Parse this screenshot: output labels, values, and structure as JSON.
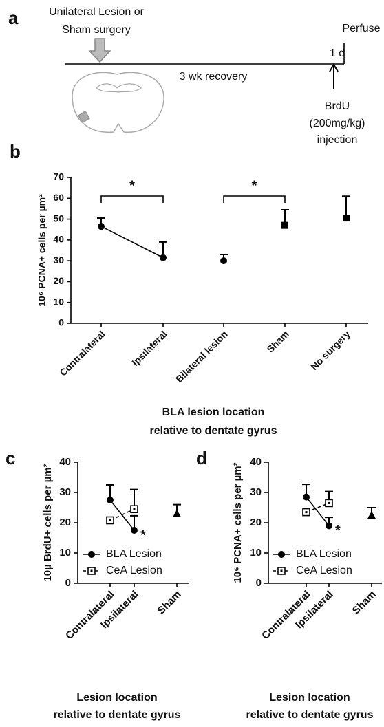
{
  "timeline": {
    "panel": "a",
    "start": [
      "Unilateral Lesion or",
      "Sham surgery"
    ],
    "recovery": "3 wk recovery",
    "interval": "1 d",
    "end": "Perfuse",
    "injection": [
      "BrdU",
      "(200mg/kg)",
      "injection"
    ]
  },
  "chart_data": [
    {
      "type": "errorbar",
      "panel": "b",
      "ylabel": "10⁶ PCNA+ cells per µm²",
      "xlabel": [
        "BLA lesion location",
        "relative to dentate gyrus"
      ],
      "categories": [
        "Contralateral",
        "Ipsilateral",
        "Bilateral lesion",
        "Sham",
        "No surgery"
      ],
      "series": [
        {
          "color": "#000000",
          "marker": "circle",
          "connect": true,
          "values": [
            46.5,
            31.5,
            null,
            null,
            null
          ],
          "errors": [
            4,
            7.5,
            null,
            null,
            null
          ]
        },
        {
          "color": "#000000",
          "marker": "circle",
          "connect": false,
          "values": [
            null,
            null,
            30,
            null,
            null
          ],
          "errors": [
            null,
            null,
            3,
            null,
            null
          ]
        },
        {
          "color": "#000000",
          "marker": "square",
          "connect": false,
          "values": [
            null,
            null,
            null,
            47,
            50.5
          ],
          "errors": [
            null,
            null,
            null,
            7.5,
            10.5
          ]
        }
      ],
      "annotations": [
        {
          "text": "*",
          "between": [
            "Contralateral",
            "Ipsilateral"
          ]
        },
        {
          "text": "*",
          "between": [
            "Bilateral lesion",
            "Sham"
          ]
        }
      ],
      "ylim": [
        0,
        70
      ],
      "yticks": [
        0,
        10,
        20,
        30,
        40,
        50,
        60,
        70
      ]
    },
    {
      "type": "errorbar",
      "panel": "c",
      "ylabel": "10µ BrdU+ cells per µm²",
      "xlabel": [
        "Lesion location",
        "relative to dentate gyrus"
      ],
      "categories": [
        "Contralateral",
        "Ipsilateral",
        "Sham"
      ],
      "series": [
        {
          "name": "BLA Lesion",
          "color": "#000000",
          "marker": "circle",
          "connect": true,
          "values": [
            27.5,
            17.5,
            null
          ],
          "errors": [
            5,
            4.8,
            null
          ]
        },
        {
          "name": "CeA Lesion",
          "color": "#000000",
          "marker": "open-square",
          "dash": true,
          "connect": true,
          "values": [
            20.8,
            24.5,
            null
          ],
          "errors": [
            null,
            6.5,
            null
          ]
        },
        {
          "color": "#000000",
          "marker": "triangle",
          "connect": false,
          "values": [
            null,
            null,
            23
          ],
          "errors": [
            null,
            null,
            3
          ]
        }
      ],
      "annotations": [
        {
          "text": "*",
          "at": "Ipsilateral"
        }
      ],
      "ylim": [
        0,
        40
      ],
      "yticks": [
        0,
        10,
        20,
        30,
        40
      ]
    },
    {
      "type": "errorbar",
      "panel": "d",
      "ylabel": "10⁶ PCNA+ cells per µm²",
      "xlabel": [
        "Lesion location",
        "relative to dentate gyrus"
      ],
      "categories": [
        "Contralateral",
        "Ipsilateral",
        "Sham"
      ],
      "series": [
        {
          "name": "BLA Lesion",
          "color": "#000000",
          "marker": "circle",
          "connect": true,
          "values": [
            28.5,
            19,
            null
          ],
          "errors": [
            4.2,
            2.8,
            null
          ]
        },
        {
          "name": "CeA Lesion",
          "color": "#000000",
          "marker": "open-square",
          "dash": true,
          "connect": true,
          "values": [
            23.5,
            26.5,
            null
          ],
          "errors": [
            null,
            3.8,
            null
          ]
        },
        {
          "color": "#000000",
          "marker": "triangle",
          "connect": false,
          "values": [
            null,
            null,
            22.5
          ],
          "errors": [
            null,
            null,
            2.5
          ]
        }
      ],
      "annotations": [
        {
          "text": "*",
          "at": "Ipsilateral"
        }
      ],
      "ylim": [
        0,
        40
      ],
      "yticks": [
        0,
        10,
        20,
        30,
        40
      ]
    }
  ]
}
